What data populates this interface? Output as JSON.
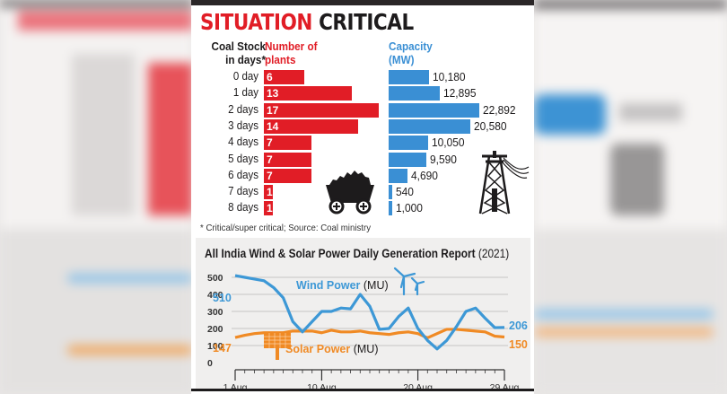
{
  "infographic": {
    "headline": {
      "part1": "SITUATION",
      "part2": "CRITICAL"
    },
    "colors": {
      "red": "#e11d26",
      "blue": "#3a8fd4",
      "orange": "#f08a24",
      "wind_line": "#3d98d6"
    },
    "coal_table": {
      "col_days": [
        "Coal Stock",
        "in days*"
      ],
      "col_plants": [
        "Number of",
        "plants"
      ],
      "col_capacity": [
        "Capacity",
        "(MW)"
      ],
      "rows": [
        {
          "label": "0 day",
          "plants": "6",
          "capacity": "10,180"
        },
        {
          "label": "1 day",
          "plants": "13",
          "capacity": "12,895"
        },
        {
          "label": "2 days",
          "plants": "17",
          "capacity": "22,892"
        },
        {
          "label": "3 days",
          "plants": "14",
          "capacity": "20,580"
        },
        {
          "label": "4 days",
          "plants": "7",
          "capacity": "10,050"
        },
        {
          "label": "5 days",
          "plants": "7",
          "capacity": "9,590"
        },
        {
          "label": "6 days",
          "plants": "7",
          "capacity": "4,690"
        },
        {
          "label": "7 days",
          "plants": "1",
          "capacity": "540"
        },
        {
          "label": "8 days",
          "plants": "1",
          "capacity": "1,000"
        }
      ],
      "footnote": "* Critical/super critical; Source: Coal ministry",
      "icons": [
        "coal-cart-icon",
        "power-tower-icon"
      ]
    },
    "line_chart": {
      "title": "All India Wind & Solar Power Daily Generation Report",
      "year": "(2021)",
      "y_ticks": [
        "500",
        "400",
        "300",
        "200",
        "100",
        "0"
      ],
      "x_ticks": [
        "1 Aug",
        "10 Aug",
        "20 Aug",
        "29 Aug"
      ],
      "wind_label": "Wind Power",
      "solar_label": "Solar Power",
      "unit": "(MU)",
      "wind_start": "510",
      "wind_end": "206",
      "solar_start": "147",
      "solar_end": "150",
      "icons": [
        "wind-turbine-icon",
        "solar-panel-icon"
      ]
    }
  },
  "chart_data": [
    {
      "type": "bar",
      "title": "SITUATION CRITICAL",
      "xlabel": "Coal Stock in days*",
      "categories": [
        "0 day",
        "1 day",
        "2 days",
        "3 days",
        "4 days",
        "5 days",
        "6 days",
        "7 days",
        "8 days"
      ],
      "series": [
        {
          "name": "Number of plants",
          "values": [
            6,
            13,
            17,
            14,
            7,
            7,
            7,
            1,
            1
          ]
        },
        {
          "name": "Capacity (MW)",
          "values": [
            10180,
            12895,
            22892,
            20580,
            10050,
            9590,
            4690,
            540,
            1000
          ]
        }
      ],
      "orientation": "horizontal",
      "footnote": "* Critical/super critical; Source: Coal ministry"
    },
    {
      "type": "line",
      "title": "All India Wind & Solar Power Daily Generation Report (2021)",
      "xlabel": "",
      "ylabel": "MU",
      "x": [
        "1 Aug",
        "2 Aug",
        "3 Aug",
        "4 Aug",
        "5 Aug",
        "6 Aug",
        "7 Aug",
        "8 Aug",
        "9 Aug",
        "10 Aug",
        "11 Aug",
        "12 Aug",
        "13 Aug",
        "14 Aug",
        "15 Aug",
        "16 Aug",
        "17 Aug",
        "18 Aug",
        "19 Aug",
        "20 Aug",
        "21 Aug",
        "22 Aug",
        "23 Aug",
        "24 Aug",
        "25 Aug",
        "26 Aug",
        "27 Aug",
        "28 Aug",
        "29 Aug"
      ],
      "series": [
        {
          "name": "Wind Power (MU)",
          "values": [
            510,
            500,
            490,
            480,
            440,
            380,
            240,
            180,
            240,
            300,
            300,
            320,
            315,
            400,
            330,
            195,
            200,
            270,
            320,
            200,
            130,
            80,
            130,
            210,
            300,
            320,
            260,
            205,
            206
          ]
        },
        {
          "name": "Solar Power (MU)",
          "values": [
            147,
            160,
            170,
            175,
            175,
            175,
            185,
            185,
            185,
            175,
            190,
            180,
            180,
            185,
            175,
            170,
            165,
            175,
            180,
            170,
            145,
            170,
            195,
            195,
            190,
            185,
            180,
            155,
            150
          ]
        }
      ],
      "ylim": [
        0,
        500
      ],
      "y_ticks": [
        0,
        100,
        200,
        300,
        400,
        500
      ],
      "x_ticks": [
        "1 Aug",
        "10 Aug",
        "20 Aug",
        "29 Aug"
      ],
      "annotations": [
        "510",
        "206",
        "147",
        "150"
      ],
      "grid": true
    }
  ]
}
